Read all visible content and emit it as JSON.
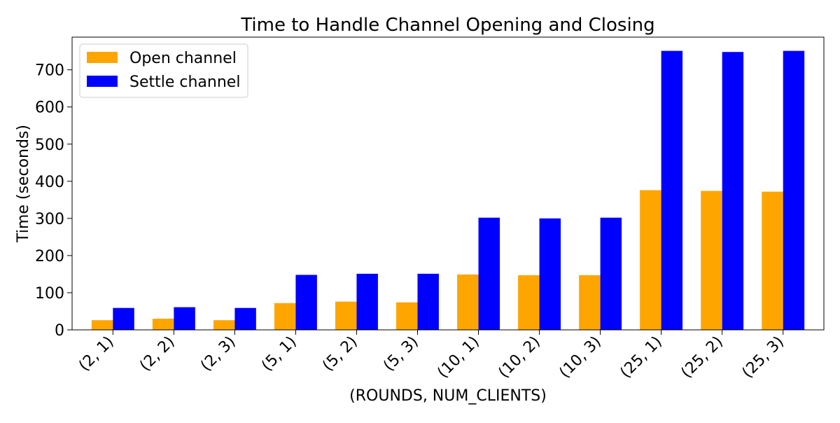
{
  "chart_data": {
    "type": "bar",
    "title": "Time to Handle Channel Opening and Closing",
    "xlabel": "(ROUNDS, NUM_CLIENTS)",
    "ylabel": "Time (seconds)",
    "categories": [
      "(2, 1)",
      "(2, 2)",
      "(2, 3)",
      "(5, 1)",
      "(5, 2)",
      "(5, 3)",
      "(10, 1)",
      "(10, 2)",
      "(10, 3)",
      "(25, 1)",
      "(25, 2)",
      "(25, 3)"
    ],
    "series": [
      {
        "name": "Open channel",
        "color": "#ffa500",
        "values": [
          26,
          30,
          26,
          72,
          76,
          74,
          149,
          147,
          147,
          376,
          374,
          372
        ]
      },
      {
        "name": "Settle channel",
        "color": "#0000ff",
        "values": [
          59,
          61,
          59,
          148,
          151,
          151,
          302,
          300,
          302,
          751,
          748,
          751
        ]
      }
    ],
    "ylim": [
      0,
      788
    ],
    "yticks": [
      0,
      100,
      200,
      300,
      400,
      500,
      600,
      700
    ],
    "grid": false,
    "legend_position": "upper-left"
  }
}
